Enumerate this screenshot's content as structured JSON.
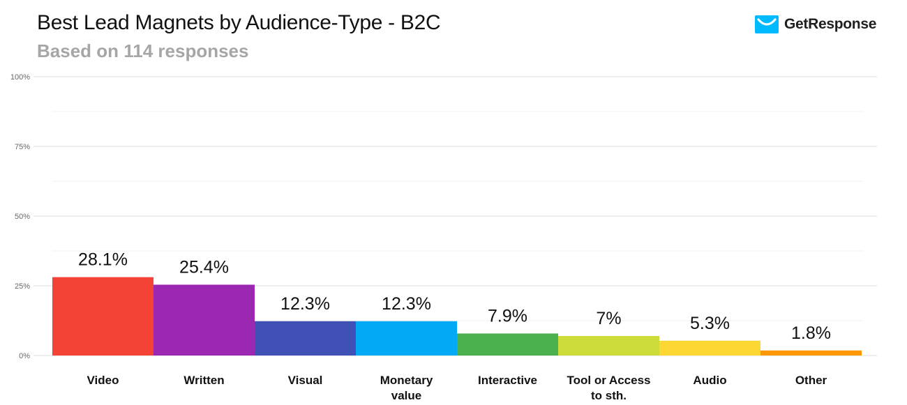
{
  "header": {
    "title": "Best Lead Magnets by Audience-Type - B2C",
    "subtitle": "Based on 114 responses",
    "brand": "GetResponse"
  },
  "colors": {
    "brand": "#00baff",
    "gridline": "#dcdcdc",
    "minor_gridline": "#efefef",
    "tick_label": "#666666",
    "category_label": "#111111"
  },
  "chart_data": {
    "type": "bar",
    "title": "Best Lead Magnets by Audience-Type - B2C",
    "subtitle": "Based on 114 responses",
    "xlabel": "",
    "ylabel": "",
    "ylim": [
      0,
      100
    ],
    "grid": true,
    "legend": "none",
    "y_ticks": [
      0,
      25,
      50,
      75,
      100
    ],
    "y_tick_labels": [
      "0%",
      "25%",
      "50%",
      "75%",
      "100%"
    ],
    "categories": [
      "Video",
      "Written",
      "Visual",
      "Monetary value",
      "Interactive",
      "Tool or Access to sth.",
      "Audio",
      "Other"
    ],
    "category_labels": [
      [
        "Video"
      ],
      [
        "Written"
      ],
      [
        "Visual"
      ],
      [
        "Monetary",
        "value"
      ],
      [
        "Interactive"
      ],
      [
        "Tool or Access",
        "to sth."
      ],
      [
        "Audio"
      ],
      [
        "Other"
      ]
    ],
    "values": [
      28.1,
      25.4,
      12.3,
      12.3,
      7.9,
      7,
      5.3,
      1.8
    ],
    "data_labels": [
      "28.1%",
      "25.4%",
      "12.3%",
      "12.3%",
      "7.9%",
      "7%",
      "5.3%",
      "1.8%"
    ],
    "bar_colors": [
      "#f44336",
      "#9c27b0",
      "#3f51b5",
      "#03a9f4",
      "#4caf50",
      "#cddc39",
      "#fdd835",
      "#ff9800"
    ]
  }
}
